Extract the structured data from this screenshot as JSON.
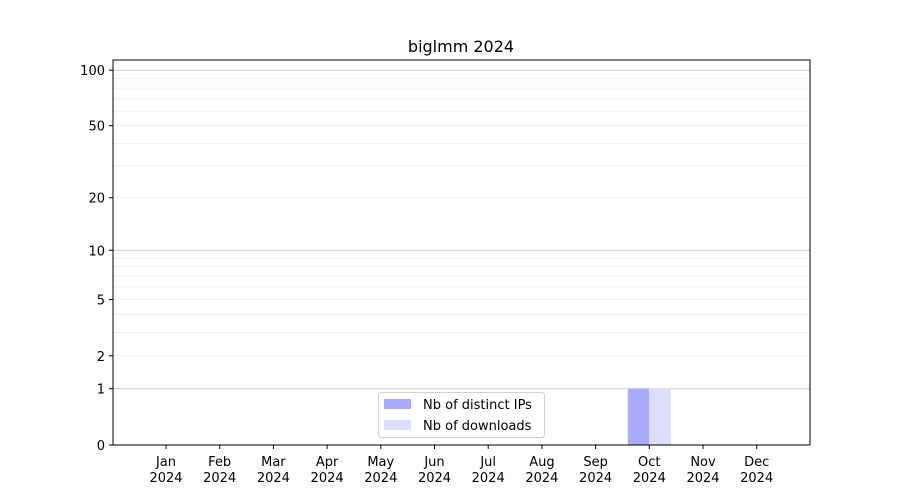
{
  "chart_data": {
    "type": "bar",
    "title": "biglmm 2024",
    "xlabel": "",
    "ylabel": "",
    "categories": [
      "Jan\n2024",
      "Feb\n2024",
      "Mar\n2024",
      "Apr\n2024",
      "May\n2024",
      "Jun\n2024",
      "Jul\n2024",
      "Aug\n2024",
      "Sep\n2024",
      "Oct\n2024",
      "Nov\n2024",
      "Dec\n2024"
    ],
    "series": [
      {
        "name": "Nb of distinct IPs",
        "color": "#aaaaff",
        "values": [
          0,
          0,
          0,
          0,
          0,
          0,
          0,
          0,
          0,
          1,
          0,
          0
        ]
      },
      {
        "name": "Nb of downloads",
        "color": "#ddddff",
        "values": [
          0,
          0,
          0,
          0,
          0,
          0,
          0,
          0,
          0,
          1,
          0,
          0
        ]
      }
    ],
    "y_scale": "log(1+y)",
    "ylim": [
      0,
      114
    ],
    "y_ticks": [
      0,
      1,
      2,
      5,
      10,
      20,
      50,
      100
    ],
    "grid": true,
    "legend_position": "lower-center"
  }
}
